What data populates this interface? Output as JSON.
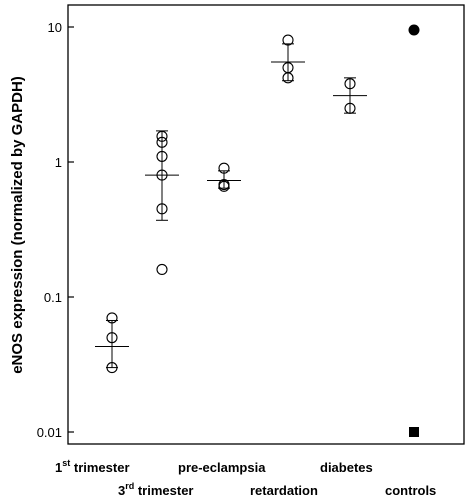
{
  "chart_data": {
    "type": "scatter",
    "title": "",
    "ylabel": "eNOS expression (normalized by GAPDH)",
    "yscale": "log",
    "ylim": [
      0.01,
      10
    ],
    "yticks": [
      {
        "value": 10,
        "label": "10"
      },
      {
        "value": 1,
        "label": "1"
      },
      {
        "value": 0.1,
        "label": "0.1"
      },
      {
        "value": 0.01,
        "label": "0.01"
      }
    ],
    "grid": false,
    "categories": [
      {
        "key": "first_trimester",
        "pre": "1",
        "sup": "st",
        "post": " trimester",
        "row": 1
      },
      {
        "key": "third_trimester",
        "pre": "3",
        "sup": "rd",
        "post": " trimester",
        "row": 2
      },
      {
        "key": "preeclampsia",
        "pre": "pre-eclampsia",
        "sup": "",
        "post": "",
        "row": 1
      },
      {
        "key": "retardation",
        "pre": "retardation",
        "sup": "",
        "post": "",
        "row": 2
      },
      {
        "key": "diabetes",
        "pre": "diabetes",
        "sup": "",
        "post": "",
        "row": 1
      },
      {
        "key": "controls",
        "pre": "controls",
        "sup": "",
        "post": "",
        "row": 2
      }
    ],
    "groups": [
      {
        "category": "first_trimester",
        "marker": "open-circle",
        "values": [
          0.07,
          0.05,
          0.03
        ],
        "mean": 0.043,
        "sd_low": 0.03,
        "sd_high": 0.067
      },
      {
        "category": "third_trimester",
        "marker": "open-circle",
        "values": [
          1.55,
          1.4,
          1.1,
          0.8,
          0.45,
          0.16
        ],
        "mean": 0.8,
        "sd_low": 0.37,
        "sd_high": 1.7
      },
      {
        "category": "preeclampsia",
        "marker": "open-circle",
        "values": [
          0.9,
          0.68,
          0.66
        ],
        "mean": 0.73,
        "sd_low": 0.64,
        "sd_high": 0.86
      },
      {
        "category": "retardation",
        "marker": "open-circle",
        "values": [
          8.0,
          5.0,
          4.2
        ],
        "mean": 5.5,
        "sd_low": 4.0,
        "sd_high": 7.5
      },
      {
        "category": "diabetes",
        "marker": "open-circle",
        "values": [
          3.8,
          2.5
        ],
        "mean": 3.1,
        "sd_low": 2.3,
        "sd_high": 4.2
      },
      {
        "category": "controls",
        "marker": "filled-circle",
        "values": [
          9.5
        ],
        "mean": null,
        "sd_low": null,
        "sd_high": null
      },
      {
        "category": "controls",
        "marker": "filled-square",
        "values": [
          0.01
        ],
        "mean": null,
        "sd_low": null,
        "sd_high": null
      }
    ]
  }
}
